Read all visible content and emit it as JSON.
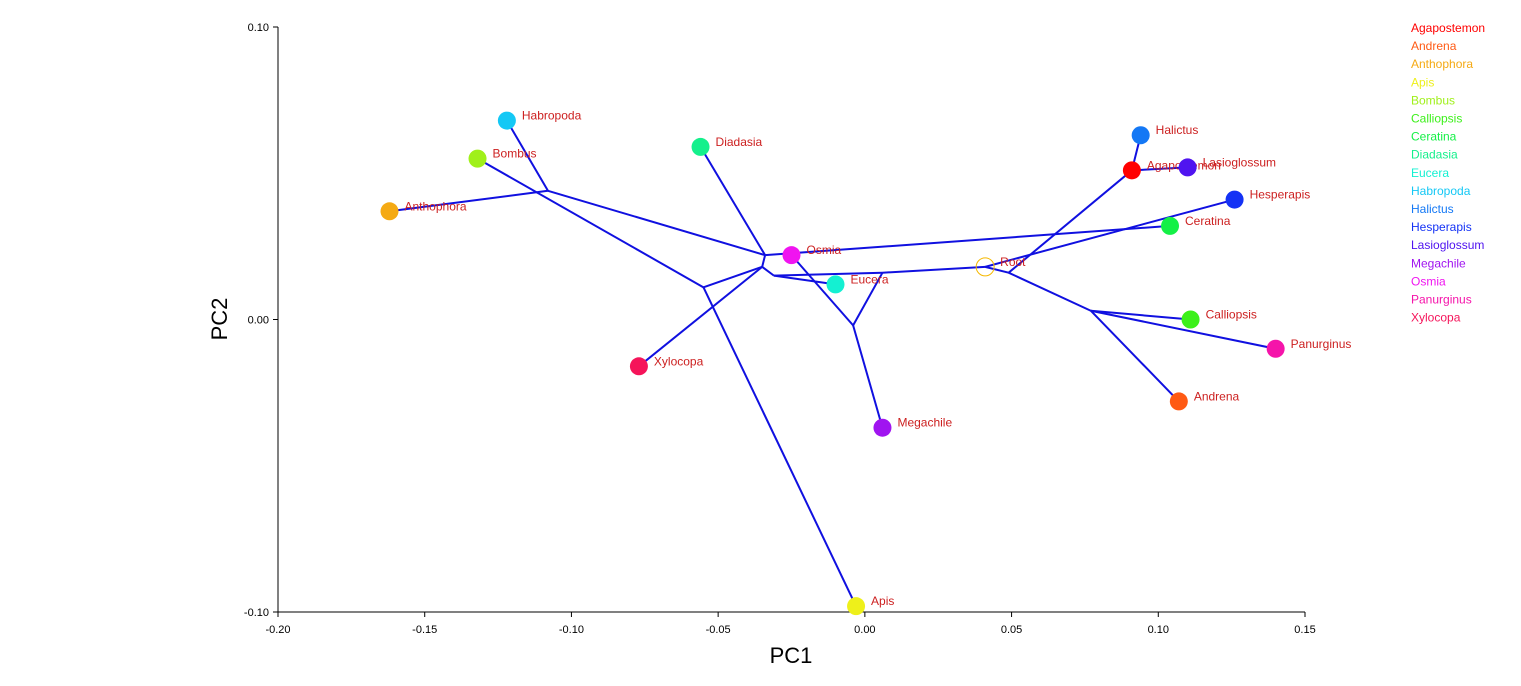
{
  "chart_data": {
    "type": "scatter",
    "subtype": "phylomorphospace",
    "xlabel": "PC1",
    "ylabel": "PC2",
    "xlim": [
      -0.2,
      0.15
    ],
    "ylim": [
      -0.1,
      0.1
    ],
    "x_ticks": [
      -0.2,
      -0.15,
      -0.1,
      -0.05,
      0.0,
      0.05,
      0.1,
      0.15
    ],
    "x_tick_labels": [
      "-0.20",
      "-0.15",
      "-0.10",
      "-0.05",
      "0.00",
      "0.05",
      "0.10",
      "0.15"
    ],
    "y_ticks": [
      -0.1,
      0.0,
      0.1
    ],
    "y_tick_labels": [
      "-0.10",
      "0.00",
      "0.10"
    ],
    "grid": false,
    "legend_position": "right",
    "label_color": "#cc1f1f",
    "branch_color": "#1010e0",
    "root": {
      "name": "Root",
      "x": 0.041,
      "y": 0.018,
      "color": "#f5b800"
    },
    "taxa": [
      {
        "name": "Agapostemon",
        "x": 0.091,
        "y": 0.051,
        "color": "#ff0000"
      },
      {
        "name": "Andrena",
        "x": 0.107,
        "y": -0.028,
        "color": "#ff5a14"
      },
      {
        "name": "Anthophora",
        "x": -0.162,
        "y": 0.037,
        "color": "#f5aa14"
      },
      {
        "name": "Apis",
        "x": -0.003,
        "y": -0.098,
        "color": "#eef01a"
      },
      {
        "name": "Bombus",
        "x": -0.132,
        "y": 0.055,
        "color": "#a0f01a"
      },
      {
        "name": "Calliopsis",
        "x": 0.111,
        "y": 0.0,
        "color": "#3cf01a"
      },
      {
        "name": "Ceratina",
        "x": 0.104,
        "y": 0.032,
        "color": "#14f046"
      },
      {
        "name": "Diadasia",
        "x": -0.056,
        "y": 0.059,
        "color": "#14f08c"
      },
      {
        "name": "Eucera",
        "x": -0.01,
        "y": 0.012,
        "color": "#14f0d2"
      },
      {
        "name": "Habropoda",
        "x": -0.122,
        "y": 0.068,
        "color": "#14c8f5"
      },
      {
        "name": "Halictus",
        "x": 0.094,
        "y": 0.063,
        "color": "#1478f5"
      },
      {
        "name": "Hesperapis",
        "x": 0.126,
        "y": 0.041,
        "color": "#1432f5"
      },
      {
        "name": "Lasioglossum",
        "x": 0.11,
        "y": 0.052,
        "color": "#5014f0"
      },
      {
        "name": "Megachile",
        "x": 0.006,
        "y": -0.037,
        "color": "#a014f0"
      },
      {
        "name": "Osmia",
        "x": -0.025,
        "y": 0.022,
        "color": "#f014f0"
      },
      {
        "name": "Panurginus",
        "x": 0.14,
        "y": -0.01,
        "color": "#f514aa"
      },
      {
        "name": "Xylocopa",
        "x": -0.077,
        "y": -0.016,
        "color": "#f5145a"
      }
    ],
    "internal_nodes": {
      "n1": {
        "x": 0.049,
        "y": 0.016
      },
      "n2": {
        "x": 0.077,
        "y": 0.003
      },
      "n3": {
        "x": 0.006,
        "y": 0.016
      },
      "n4": {
        "x": -0.004,
        "y": -0.002
      },
      "n5": {
        "x": -0.031,
        "y": 0.015
      },
      "n6": {
        "x": -0.035,
        "y": 0.018
      },
      "n7": {
        "x": -0.034,
        "y": 0.022
      },
      "n8": {
        "x": -0.055,
        "y": 0.011
      },
      "n9": {
        "x": -0.108,
        "y": 0.044
      }
    },
    "edges": [
      [
        "Root",
        "n1"
      ],
      [
        "n1",
        "Agapostemon"
      ],
      [
        "Agapostemon",
        "Halictus"
      ],
      [
        "Agapostemon",
        "Lasioglossum"
      ],
      [
        "Root",
        "Hesperapis"
      ],
      [
        "n1",
        "n2"
      ],
      [
        "n2",
        "Calliopsis"
      ],
      [
        "n2",
        "Panurginus"
      ],
      [
        "n2",
        "Andrena"
      ],
      [
        "Root",
        "n3"
      ],
      [
        "n3",
        "n4"
      ],
      [
        "n4",
        "Megachile"
      ],
      [
        "n4",
        "Osmia"
      ],
      [
        "n3",
        "n5"
      ],
      [
        "n5",
        "Eucera"
      ],
      [
        "n5",
        "n6"
      ],
      [
        "n6",
        "Xylocopa"
      ],
      [
        "n6",
        "n7"
      ],
      [
        "n7",
        "Diadasia"
      ],
      [
        "n7",
        "Ceratina"
      ],
      [
        "n7",
        "n9"
      ],
      [
        "n9",
        "Anthophora"
      ],
      [
        "n9",
        "Habropoda"
      ],
      [
        "n6",
        "n8"
      ],
      [
        "n8",
        "Apis"
      ],
      [
        "n8",
        "Bombus"
      ]
    ]
  }
}
